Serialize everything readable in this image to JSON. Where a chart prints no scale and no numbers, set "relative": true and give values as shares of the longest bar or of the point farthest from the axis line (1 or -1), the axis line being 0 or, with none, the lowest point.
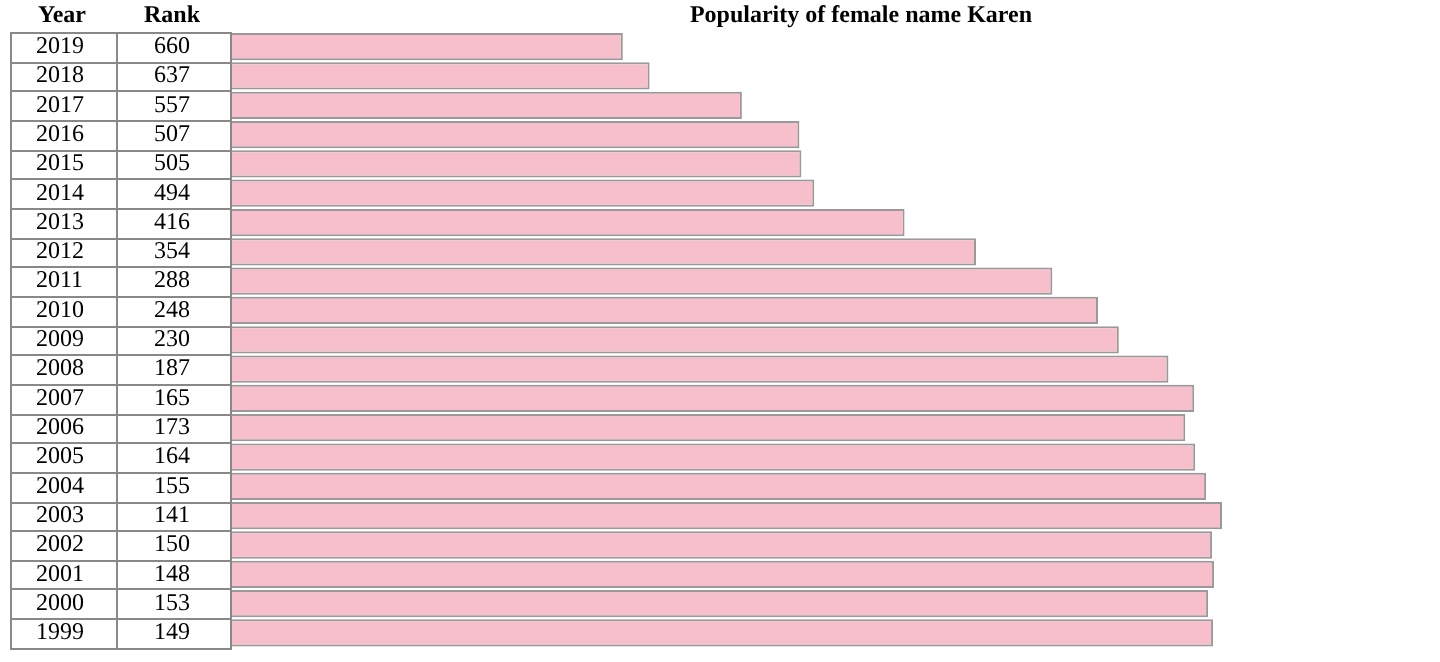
{
  "chart_data": {
    "type": "bar",
    "orientation": "horizontal",
    "relative": true,
    "title": "Popularity of female name Karen",
    "ylabel": "Year",
    "categories": [
      "2019",
      "2018",
      "2017",
      "2016",
      "2015",
      "2014",
      "2013",
      "2012",
      "2011",
      "2010",
      "2009",
      "2008",
      "2007",
      "2006",
      "2005",
      "2004",
      "2003",
      "2002",
      "2001",
      "2000",
      "1999"
    ],
    "values": [
      0.396,
      0.423,
      0.516,
      0.574,
      0.576,
      0.589,
      0.68,
      0.752,
      0.829,
      0.875,
      0.896,
      0.946,
      0.972,
      0.963,
      0.973,
      0.984,
      1,
      0.99,
      0.992,
      0.986,
      0.991
    ],
    "annotations": [
      "Rank",
      "660",
      "637",
      "557",
      "507",
      "505",
      "494",
      "416",
      "354",
      "288",
      "248",
      "230",
      "187",
      "165",
      "173",
      "164",
      "155",
      "141",
      "150",
      "148",
      "153",
      "149"
    ],
    "color": "#f7bfcb"
  }
}
